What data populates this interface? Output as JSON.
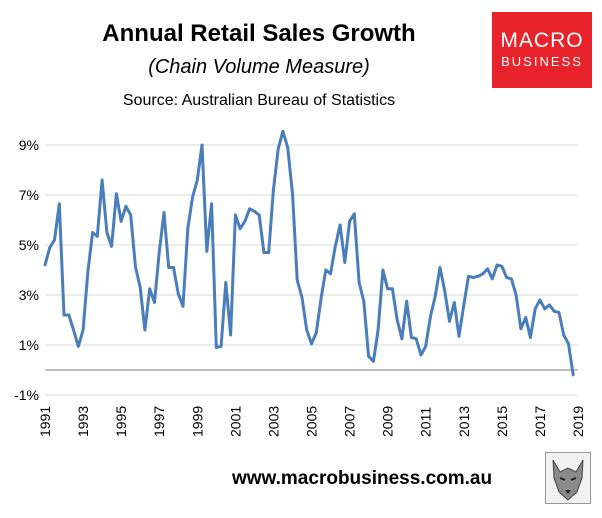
{
  "header": {
    "title": "Annual Retail Sales Growth",
    "subtitle": "(Chain Volume Measure)",
    "source": "Source: Australian Bureau of Statistics"
  },
  "logo": {
    "line1": "MACRO",
    "line2": "BUSINESS",
    "background": "#e8232b"
  },
  "footer": {
    "website": "www.macrobusiness.com.au"
  },
  "colors": {
    "series": "#4a7ebb",
    "gridline": "#d9d9d9",
    "zero_line": "#808080"
  },
  "chart_data": {
    "type": "line",
    "title": "Annual Retail Sales Growth",
    "subtitle": "(Chain Volume Measure)",
    "xlabel": "",
    "ylabel": "",
    "x_range": [
      1991.0,
      2019.0
    ],
    "ylim": [
      -1,
      10
    ],
    "y_ticks": [
      -1,
      1,
      3,
      5,
      7,
      9
    ],
    "y_tick_labels": [
      "-1%",
      "1%",
      "3%",
      "5%",
      "7%",
      "9%"
    ],
    "x_ticks": [
      1991,
      1993,
      1995,
      1997,
      1999,
      2001,
      2003,
      2005,
      2007,
      2009,
      2011,
      2013,
      2015,
      2017,
      2019
    ],
    "x_tick_labels": [
      "1991",
      "1993",
      "1995",
      "1997",
      "1999",
      "2001",
      "2003",
      "2005",
      "2007",
      "2009",
      "2011",
      "2013",
      "2015",
      "2017",
      "2019"
    ],
    "grid": {
      "horizontal": true,
      "vertical": false
    },
    "legend": "none",
    "series": [
      {
        "x": [
          1991.0,
          1991.25,
          1991.5,
          1991.75,
          1992.0,
          1992.25,
          1992.5,
          1992.75,
          1993.0,
          1993.25,
          1993.5,
          1993.75,
          1994.0,
          1994.25,
          1994.5,
          1994.75,
          1995.0,
          1995.25,
          1995.5,
          1995.75,
          1996.0,
          1996.25,
          1996.5,
          1996.75,
          1997.0,
          1997.25,
          1997.5,
          1997.75,
          1998.0,
          1998.25,
          1998.5,
          1998.75,
          1999.0,
          1999.25,
          1999.5,
          1999.75,
          2000.0,
          2000.25,
          2000.5,
          2000.75,
          2001.0,
          2001.25,
          2001.5,
          2001.75,
          2002.0,
          2002.25,
          2002.5,
          2002.75,
          2003.0,
          2003.25,
          2003.5,
          2003.75,
          2004.0,
          2004.25,
          2004.5,
          2004.75,
          2005.0,
          2005.25,
          2005.5,
          2005.75,
          2006.0,
          2006.25,
          2006.5,
          2006.75,
          2007.0,
          2007.25,
          2007.5,
          2007.75,
          2008.0,
          2008.25,
          2008.5,
          2008.75,
          2009.0,
          2009.25,
          2009.5,
          2009.75,
          2010.0,
          2010.25,
          2010.5,
          2010.75,
          2011.0,
          2011.25,
          2011.5,
          2011.75,
          2012.0,
          2012.25,
          2012.5,
          2012.75,
          2013.0,
          2013.25,
          2013.5,
          2013.75,
          2014.0,
          2014.25,
          2014.5,
          2014.75,
          2015.0,
          2015.25,
          2015.5,
          2015.75,
          2016.0,
          2016.25,
          2016.5,
          2016.75,
          2017.0,
          2017.25,
          2017.5,
          2017.75,
          2018.0,
          2018.25,
          2018.5,
          2018.75
        ],
        "y": [
          4.2,
          4.9,
          5.2,
          6.65,
          2.2,
          2.2,
          1.6,
          0.95,
          1.6,
          3.9,
          5.5,
          5.35,
          7.6,
          5.5,
          4.95,
          7.05,
          5.95,
          6.55,
          6.2,
          4.15,
          3.3,
          1.6,
          3.25,
          2.7,
          4.7,
          6.3,
          4.1,
          4.1,
          3.05,
          2.55,
          5.65,
          6.9,
          7.6,
          9.0,
          4.75,
          6.65,
          0.9,
          0.95,
          3.5,
          1.4,
          6.2,
          5.65,
          5.95,
          6.45,
          6.35,
          6.2,
          4.7,
          4.7,
          7.2,
          8.85,
          9.55,
          8.9,
          7.05,
          3.6,
          2.9,
          1.6,
          1.05,
          1.5,
          2.85,
          4.0,
          3.85,
          4.95,
          5.8,
          4.3,
          5.95,
          6.25,
          3.5,
          2.75,
          0.55,
          0.35,
          1.6,
          4.0,
          3.25,
          3.25,
          2.0,
          1.25,
          2.75,
          1.3,
          1.25,
          0.6,
          0.95,
          2.15,
          2.95,
          4.1,
          3.15,
          1.95,
          2.7,
          1.35,
          2.6,
          3.75,
          3.7,
          3.75,
          3.85,
          4.05,
          3.65,
          4.2,
          4.15,
          3.7,
          3.65,
          3.0,
          1.65,
          2.1,
          1.3,
          2.45,
          2.8,
          2.45,
          2.6,
          2.35,
          2.3,
          1.4,
          1.05,
          -0.2
        ]
      }
    ]
  }
}
